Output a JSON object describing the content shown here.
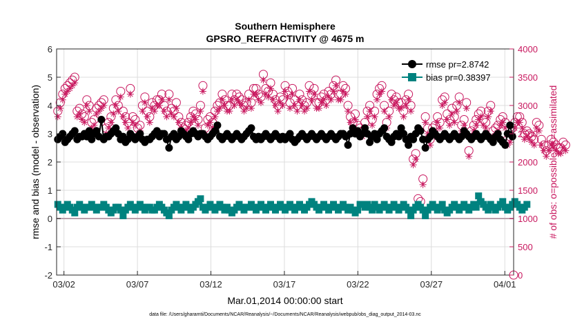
{
  "colors": {
    "rmse": "#000000",
    "bias": "#00827f",
    "obs": "#c8175e",
    "zero_line": "#b9a1ac",
    "grid": "#dcdcdc",
    "axis": "#262626"
  },
  "chart_data": {
    "type": "line",
    "title": "Southern Hemisphere",
    "subtitle": "GPSRO_REFRACTIVITY @ 4675 m",
    "xlabel": "Mar.01,2014 00:00:00 start",
    "ylabel": "rmse and bias (model - observation)",
    "y2label": "# of obs: o=possible; ∗=assimilated",
    "footer": "data file: /Users/gharamti/Documents/NCAR/Reanalysis/~/Documents/NCAR/Reanalysis/webpub/obs_diag_output_2014-03.nc",
    "xlim": [
      0.5,
      31.6
    ],
    "ylim": [
      -2,
      6
    ],
    "y2lim": [
      0,
      4000
    ],
    "x_ticks": [
      1,
      6,
      11,
      16,
      21,
      26,
      31
    ],
    "x_tick_labels": [
      "03/02",
      "03/07",
      "03/12",
      "03/17",
      "03/22",
      "03/27",
      "04/01"
    ],
    "y_ticks": [
      "-2",
      "-1",
      "0",
      "1",
      "2",
      "3",
      "4",
      "5",
      "6"
    ],
    "y2_ticks": [
      "0",
      "500",
      "1000",
      "1500",
      "2000",
      "2500",
      "3000",
      "3500",
      "4000"
    ],
    "legend": {
      "position": "top-right",
      "entries": [
        "rmse pr=2.8742",
        "bias pr=0.38397"
      ]
    },
    "series": [
      {
        "name": "rmse pr=2.8742",
        "axis": "left",
        "values": [
          2.8,
          2.9,
          3.0,
          2.7,
          2.8,
          2.9,
          3.0,
          3.1,
          2.8,
          2.9,
          2.9,
          3.0,
          2.9,
          3.1,
          2.8,
          3.0,
          3.1,
          2.9,
          3.5,
          2.8,
          2.9,
          2.9,
          3.0,
          3.1,
          3.2,
          3.0,
          2.8,
          2.9,
          2.7,
          2.8,
          3.0,
          2.9,
          2.8,
          2.9,
          3.0,
          2.8,
          2.7,
          2.8,
          2.8,
          2.9,
          3.0,
          3.1,
          2.9,
          3.0,
          3.0,
          2.8,
          2.5,
          2.9,
          3.0,
          2.8,
          2.9,
          3.1,
          3.0,
          2.9,
          2.8,
          3.0,
          3.1,
          3.0,
          2.9,
          3.0,
          3.0,
          2.9,
          2.8,
          2.9,
          3.0,
          3.1,
          3.3,
          2.9,
          2.8,
          2.9,
          3.0,
          2.9,
          2.8,
          2.9,
          3.0,
          2.9,
          2.8,
          2.9,
          3.0,
          3.1,
          3.2,
          2.9,
          2.8,
          2.9,
          2.8,
          2.9,
          3.0,
          2.9,
          2.8,
          2.9,
          3.0,
          2.9,
          2.8,
          2.9,
          2.8,
          2.9,
          3.0,
          2.8,
          2.7,
          2.8,
          2.9,
          3.0,
          2.9,
          2.8,
          2.9,
          3.0,
          2.9,
          2.8,
          2.9,
          3.0,
          2.9,
          2.8,
          2.9,
          3.0,
          2.9,
          2.8,
          2.9,
          3.0,
          3.0,
          2.9,
          2.6,
          3.0,
          3.2,
          3.0,
          3.1,
          2.9,
          3.0,
          3.2,
          3.0,
          2.7,
          2.9,
          3.0,
          2.8,
          3.0,
          3.1,
          3.2,
          2.9,
          2.8,
          2.7,
          2.9,
          3.0,
          2.9,
          3.2,
          3.0,
          2.8,
          2.6,
          2.9,
          2.8,
          3.0,
          3.2,
          3.1,
          2.8,
          2.5,
          2.8,
          2.9,
          3.1,
          3.0,
          2.9,
          2.8,
          2.9,
          3.0,
          2.9,
          2.8,
          2.9,
          3.0,
          2.9,
          2.8,
          2.9,
          3.1,
          3.0,
          2.9,
          2.8,
          2.9,
          3.0,
          2.9,
          2.8,
          2.9,
          3.0,
          2.9,
          2.8,
          2.7,
          2.9,
          3.0,
          2.8,
          2.7,
          2.6,
          3.0,
          3.3,
          2.9
        ]
      },
      {
        "name": "bias pr=0.38397",
        "axis": "left",
        "values": [
          0.5,
          0.4,
          0.3,
          0.4,
          0.5,
          0.4,
          0.3,
          0.2,
          0.4,
          0.5,
          0.4,
          0.3,
          0.4,
          0.4,
          0.5,
          0.4,
          0.3,
          0.4,
          0.4,
          0.5,
          0.4,
          0.3,
          0.2,
          0.3,
          0.4,
          0.4,
          0.3,
          0.1,
          0.3,
          0.4,
          0.5,
          0.4,
          0.3,
          0.4,
          0.5,
          0.4,
          0.3,
          0.4,
          0.4,
          0.3,
          0.3,
          0.4,
          0.5,
          0.4,
          0.3,
          0.2,
          0.1,
          0.3,
          0.4,
          0.5,
          0.4,
          0.3,
          0.4,
          0.5,
          0.4,
          0.3,
          0.4,
          0.5,
          0.6,
          0.7,
          0.4,
          0.3,
          0.4,
          0.5,
          0.4,
          0.3,
          0.4,
          0.5,
          0.4,
          0.3,
          0.4,
          0.3,
          0.2,
          0.3,
          0.4,
          0.5,
          0.4,
          0.3,
          0.4,
          0.4,
          0.5,
          0.4,
          0.3,
          0.4,
          0.5,
          0.4,
          0.3,
          0.4,
          0.5,
          0.4,
          0.3,
          0.4,
          0.5,
          0.4,
          0.3,
          0.4,
          0.5,
          0.4,
          0.3,
          0.4,
          0.5,
          0.4,
          0.3,
          0.4,
          0.5,
          0.6,
          0.5,
          0.4,
          0.3,
          0.4,
          0.5,
          0.4,
          0.3,
          0.4,
          0.5,
          0.4,
          0.3,
          0.4,
          0.5,
          0.4,
          0.3,
          0.4,
          0.3,
          0.2,
          0.3,
          0.5,
          0.5,
          0.4,
          0.5,
          0.4,
          0.3,
          0.5,
          0.4,
          0.3,
          0.4,
          0.5,
          0.4,
          0.3,
          0.4,
          0.5,
          0.4,
          0.3,
          0.4,
          0.5,
          0.4,
          0.3,
          0.1,
          0.3,
          0.4,
          0.5,
          0.4,
          0.3,
          0.1,
          0.3,
          0.4,
          0.5,
          0.4,
          0.3,
          0.4,
          0.5,
          0.3,
          0.2,
          0.3,
          0.4,
          0.5,
          0.4,
          0.3,
          0.4,
          0.5,
          0.4,
          0.3,
          0.4,
          0.5,
          0.4,
          0.8,
          0.6,
          0.5,
          0.4,
          0.3,
          0.5,
          0.4,
          0.3,
          0.4,
          0.5,
          0.6,
          0.4,
          0.3,
          0.4,
          0.5,
          0.6,
          0.5,
          0.4,
          0.3,
          0.4,
          0.5
        ]
      },
      {
        "name": "possible",
        "axis": "right",
        "values": [
          2900,
          3050,
          3200,
          3300,
          3350,
          3400,
          3450,
          3500,
          2900,
          2950,
          2850,
          2800,
          3100,
          3000,
          2700,
          2750,
          2950,
          3000,
          3050,
          3100,
          2600,
          2700,
          2800,
          2950,
          3100,
          3000,
          3250,
          2900,
          2800,
          2700,
          3300,
          2800,
          2750,
          2600,
          2650,
          3000,
          3150,
          2900,
          2800,
          3050,
          3000,
          3100,
          3100,
          3200,
          3000,
          2900,
          3200,
          2950,
          2900,
          3050,
          2800,
          2700,
          2600,
          2650,
          2700,
          2800,
          2900,
          2850,
          2750,
          3000,
          3350,
          2600,
          2750,
          2800,
          2700,
          2900,
          3000,
          3050,
          3200,
          3100,
          3000,
          3000,
          3200,
          3100,
          3200,
          3150,
          3100,
          3000,
          3050,
          3200,
          3050,
          3300,
          3300,
          3200,
          3150,
          3550,
          3300,
          3250,
          3400,
          3200,
          3100,
          3000,
          3150,
          3100,
          3350,
          3250,
          3050,
          3300,
          3100,
          3000,
          3200,
          3100,
          3000,
          3050,
          3350,
          3200,
          3300,
          3050,
          3050,
          3150,
          3200,
          3100,
          3250,
          3200,
          3350,
          3450,
          3200,
          3200,
          3350,
          3300,
          3000,
          2800,
          2700,
          2850,
          2650,
          2600,
          2550,
          2700,
          2900,
          3000,
          2750,
          2900,
          3200,
          3300,
          3350,
          3000,
          2700,
          2900,
          3200,
          3100,
          3150,
          3050,
          3050,
          2900,
          3100,
          3200,
          3000,
          2050,
          2150,
          1350,
          1300,
          1700,
          2800,
          2600,
          2400,
          2600,
          2650,
          2800,
          2700,
          3100,
          3150,
          2850,
          2750,
          2950,
          2800,
          3000,
          3150,
          2650,
          2750,
          3050,
          2200,
          2550,
          2650,
          2750,
          2850,
          2900,
          2750,
          2700,
          2900,
          3000,
          2550,
          2600,
          2650,
          2750,
          2800,
          2700,
          2400,
          2450,
          2600,
          2700,
          2800,
          2800,
          2700,
          2500,
          2550,
          2500,
          2450,
          2400,
          2700,
          2650,
          2400,
          2300,
          2200,
          2300,
          2400,
          2350,
          2300,
          2250,
          2250,
          2350,
          2300
        ]
      },
      {
        "name": "assimilated",
        "axis": "right",
        "values": [
          2800,
          2950,
          3100,
          3200,
          3250,
          3300,
          3350,
          3400,
          2800,
          2850,
          2750,
          2700,
          3000,
          2900,
          2600,
          2650,
          2850,
          2900,
          2950,
          3000,
          2500,
          2600,
          2700,
          2850,
          3000,
          2900,
          3150,
          2800,
          2700,
          2600,
          3200,
          2700,
          2650,
          2500,
          2550,
          2900,
          3050,
          2800,
          2700,
          2950,
          2900,
          3000,
          3000,
          3100,
          2900,
          2800,
          3100,
          2850,
          2800,
          2950,
          2700,
          2600,
          2500,
          2550,
          2600,
          2700,
          2800,
          2750,
          2650,
          2900,
          3250,
          2500,
          2650,
          2700,
          2600,
          2800,
          2900,
          2950,
          3100,
          3000,
          2900,
          2900,
          3100,
          3000,
          3100,
          3050,
          3000,
          2900,
          2950,
          3100,
          2950,
          3200,
          3200,
          3100,
          3050,
          3450,
          3200,
          3150,
          3300,
          3100,
          3000,
          2900,
          3050,
          3000,
          3250,
          3150,
          2950,
          3200,
          3000,
          2900,
          3100,
          3000,
          2900,
          2950,
          3250,
          3100,
          3200,
          2950,
          2950,
          3050,
          3100,
          3000,
          3150,
          3100,
          3250,
          3350,
          3100,
          3100,
          3250,
          3200,
          2900,
          2700,
          2600,
          2750,
          2550,
          2500,
          2450,
          2600,
          2800,
          2900,
          2650,
          2800,
          3100,
          3200,
          3250,
          2900,
          2600,
          2800,
          3100,
          3000,
          3050,
          2950,
          2950,
          2800,
          3000,
          3100,
          2900,
          1950,
          2050,
          1250,
          1200,
          1600,
          2700,
          2500,
          2300,
          2500,
          2550,
          2700,
          2600,
          3000,
          3050,
          2750,
          2650,
          2850,
          2700,
          2900,
          3050,
          2550,
          2650,
          2950,
          2100,
          2450,
          2550,
          2650,
          2750,
          2800,
          2650,
          2600,
          2800,
          2900,
          2450,
          2500,
          2550,
          2650,
          2700,
          2600,
          2300,
          2350,
          2500,
          2600,
          2700,
          2700,
          2600,
          2400,
          2450,
          2400,
          2350,
          2300,
          2600,
          2550,
          2300,
          2200,
          2100,
          2200,
          2300,
          2250,
          2200,
          2150,
          2150,
          2250,
          2200
        ]
      }
    ]
  }
}
